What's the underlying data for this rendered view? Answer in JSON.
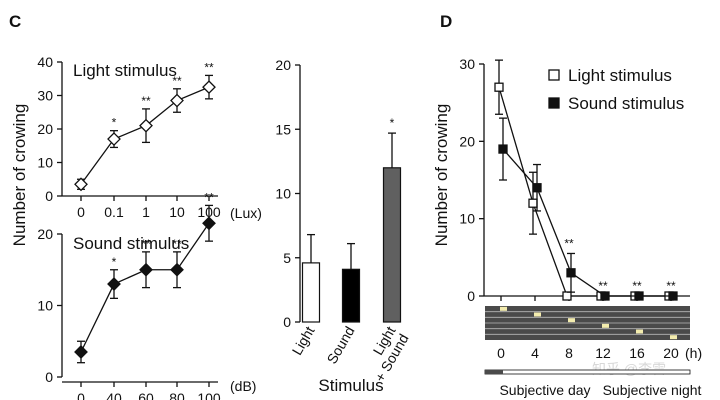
{
  "panels": {
    "C": {
      "label": "C"
    },
    "D": {
      "label": "D"
    }
  },
  "colors": {
    "ink": "#111111",
    "bar_light": "#ffffff",
    "bar_sound": "#000000",
    "bar_combined": "#606060",
    "dark_band": "#4a4a4a",
    "marker": "#f3ecae"
  },
  "watermark": "知乎 @李雷",
  "chart_data": [
    {
      "id": "c-light",
      "type": "line",
      "title": "Light stimulus",
      "ylabel": "Number of crowing",
      "unit": "(Lux)",
      "categories": [
        "0",
        "0.1",
        "1",
        "10",
        "100"
      ],
      "values": [
        3.5,
        17,
        21,
        28.5,
        32.5
      ],
      "errors": [
        1.5,
        2.5,
        5,
        3.5,
        3.5
      ],
      "significance": [
        "",
        "*",
        "**",
        "**",
        "**"
      ],
      "ylim": [
        0,
        40
      ],
      "yticks": [
        0,
        10,
        20,
        30,
        40
      ],
      "marker": "open-diamond"
    },
    {
      "id": "c-sound",
      "type": "line",
      "title": "Sound stimulus",
      "unit": "(dB)",
      "categories": [
        "0",
        "40",
        "60",
        "80",
        "100"
      ],
      "values": [
        3.5,
        13,
        15,
        15,
        21.5
      ],
      "errors": [
        1.5,
        2,
        2.5,
        2.5,
        2.5
      ],
      "significance": [
        "",
        "*",
        "**",
        "**",
        "**"
      ],
      "ylim": [
        0,
        20
      ],
      "yticks": [
        0,
        10,
        20
      ],
      "marker": "filled-diamond"
    },
    {
      "id": "c-bar",
      "type": "bar",
      "xlabel": "Stimulus",
      "categories": [
        "Light",
        "Sound",
        "Light\n+ Sound"
      ],
      "values": [
        4.6,
        4.1,
        12
      ],
      "errors": [
        2.2,
        2,
        2.7
      ],
      "significance": [
        "",
        "",
        "*"
      ],
      "ylim": [
        0,
        20
      ],
      "yticks": [
        0,
        5,
        10,
        15,
        20
      ]
    },
    {
      "id": "d-line",
      "type": "line",
      "ylabel": "Number of crowing",
      "unit": "(h)",
      "x": [
        0,
        4,
        8,
        12,
        16,
        20
      ],
      "ylim": [
        0,
        30
      ],
      "yticks": [
        0,
        10,
        20,
        30
      ],
      "series": [
        {
          "name": "Light stimulus",
          "marker": "open-square",
          "values": [
            27,
            12,
            0,
            0,
            0,
            0
          ],
          "errors": [
            3.5,
            4,
            0,
            0,
            0,
            0
          ]
        },
        {
          "name": "Sound stimulus",
          "marker": "filled-square",
          "values": [
            19,
            14,
            3,
            0,
            0,
            0
          ],
          "errors": [
            4,
            3,
            2.5,
            0,
            0,
            0
          ]
        }
      ],
      "significance": [
        "",
        "",
        "**",
        "**",
        "**",
        "**"
      ],
      "legend": "top-right",
      "schedule_bands": 6,
      "bottom_labels": [
        "Subjective day",
        "Subjective night"
      ]
    }
  ]
}
